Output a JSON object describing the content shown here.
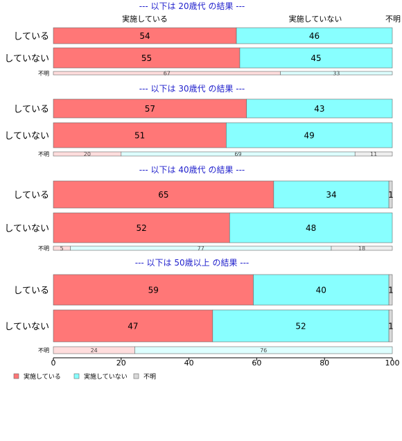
{
  "colors": {
    "implemented": "#FF7777",
    "not_implemented": "#88FFFF",
    "unknown": "#D9D9D9",
    "implemented_light": "#FFDDDD",
    "not_implemented_light": "#DDFFFF",
    "unknown_light": "#EEEEEE",
    "section_title": "#1F1FCC",
    "border": "#666666"
  },
  "chart_data": {
    "type": "bar",
    "orientation": "horizontal",
    "stacked": "percent",
    "top_labels": [
      "実施している",
      "実施していない",
      "不明"
    ],
    "legend": [
      "実施している",
      "実施していない",
      "不明"
    ],
    "legend_position": "bottom-left",
    "xlim": [
      0,
      100
    ],
    "xticks": [
      "0",
      "20",
      "40",
      "60",
      "80",
      "100"
    ],
    "groups": [
      {
        "title": "--- 以下は 20歳代 の結果 ---",
        "rows": [
          {
            "label": "している",
            "values": [
              54,
              46,
              0
            ],
            "labels": [
              "54",
              "46",
              ""
            ]
          },
          {
            "label": "していない",
            "values": [
              55,
              45,
              0
            ],
            "labels": [
              "55",
              "45",
              ""
            ]
          }
        ],
        "unknown_row": {
          "label": "不明",
          "values": [
            67,
            33,
            0
          ],
          "labels": [
            "67",
            "33",
            ""
          ]
        }
      },
      {
        "title": "--- 以下は 30歳代 の結果 ---",
        "rows": [
          {
            "label": "している",
            "values": [
              57,
              43,
              0
            ],
            "labels": [
              "57",
              "43",
              ""
            ]
          },
          {
            "label": "していない",
            "values": [
              51,
              49,
              0
            ],
            "labels": [
              "51",
              "49",
              ""
            ]
          }
        ],
        "unknown_row": {
          "label": "不明",
          "values": [
            20,
            69,
            11
          ],
          "labels": [
            "20",
            "69",
            "11"
          ]
        }
      },
      {
        "title": "--- 以下は 40歳代 の結果 ---",
        "rows": [
          {
            "label": "している",
            "values": [
              65,
              34,
              1
            ],
            "labels": [
              "65",
              "34",
              "1"
            ]
          },
          {
            "label": "していない",
            "values": [
              52,
              48,
              0
            ],
            "labels": [
              "52",
              "48",
              ""
            ]
          }
        ],
        "unknown_row": {
          "label": "不明",
          "values": [
            5,
            77,
            18
          ],
          "labels": [
            "5",
            "77",
            "18"
          ]
        }
      },
      {
        "title": "--- 以下は 50歳以上 の結果 ---",
        "rows": [
          {
            "label": "している",
            "values": [
              59,
              40,
              1
            ],
            "labels": [
              "59",
              "40",
              "1"
            ]
          },
          {
            "label": "していない",
            "values": [
              47,
              52,
              1
            ],
            "labels": [
              "47",
              "52",
              "1"
            ]
          }
        ],
        "unknown_row": {
          "label": "不明",
          "values": [
            24,
            76,
            0
          ],
          "labels": [
            "24",
            "76",
            ""
          ]
        }
      }
    ]
  }
}
